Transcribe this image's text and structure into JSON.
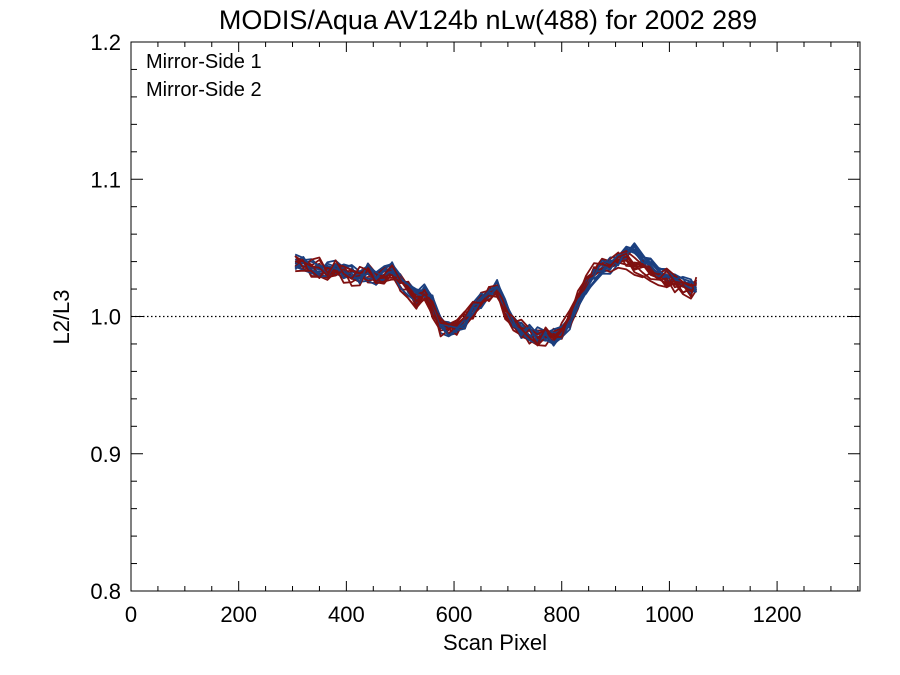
{
  "chart_data": {
    "type": "line",
    "title": "MODIS/Aqua AV124b nLw(488) for 2002 289",
    "xlabel": "Scan Pixel",
    "ylabel": "L2/L3",
    "xlim": [
      0,
      1354
    ],
    "ylim": [
      0.8,
      1.2
    ],
    "x_ticks": [
      0,
      200,
      400,
      600,
      800,
      1000,
      1200
    ],
    "x_tick_labels": [
      "0",
      "200",
      "400",
      "600",
      "800",
      "1000",
      "1200"
    ],
    "x_minor_step": 50,
    "y_ticks": [
      0.8,
      0.9,
      1.0,
      1.1,
      1.2
    ],
    "y_tick_labels": [
      "0.8",
      "0.9",
      "1.0",
      "1.1",
      "1.2"
    ],
    "y_minor_step": 0.02,
    "reference_line": {
      "y": 1.0,
      "style": "dotted"
    },
    "legend_position": "top-left",
    "colors": {
      "Mirror-Side 1": "#1b3f7f",
      "Mirror-Side 2": "#7f1010"
    },
    "series": [
      {
        "name": "Mirror-Side 1",
        "x": [
          305,
          320,
          335,
          350,
          365,
          380,
          395,
          410,
          425,
          440,
          455,
          470,
          485,
          500,
          515,
          530,
          545,
          560,
          575,
          590,
          605,
          620,
          635,
          650,
          665,
          680,
          695,
          710,
          725,
          740,
          755,
          770,
          785,
          800,
          815,
          830,
          845,
          860,
          875,
          890,
          905,
          920,
          935,
          950,
          965,
          980,
          995,
          1010,
          1025,
          1040,
          1050
        ],
        "values": [
          1.04,
          1.039,
          1.036,
          1.034,
          1.033,
          1.036,
          1.033,
          1.031,
          1.028,
          1.033,
          1.027,
          1.03,
          1.035,
          1.027,
          1.02,
          1.015,
          1.018,
          1.01,
          0.995,
          0.99,
          0.991,
          0.995,
          1.005,
          1.012,
          1.018,
          1.02,
          1.008,
          0.995,
          0.99,
          0.988,
          0.986,
          0.985,
          0.984,
          0.988,
          0.995,
          1.01,
          1.022,
          1.03,
          1.035,
          1.037,
          1.04,
          1.045,
          1.048,
          1.042,
          1.038,
          1.032,
          1.03,
          1.028,
          1.025,
          1.022,
          1.02
        ],
        "spread": 0.005
      },
      {
        "name": "Mirror-Side 2",
        "x": [
          305,
          320,
          335,
          350,
          365,
          380,
          395,
          410,
          425,
          440,
          455,
          470,
          485,
          500,
          515,
          530,
          545,
          560,
          575,
          590,
          605,
          620,
          635,
          650,
          665,
          680,
          695,
          710,
          725,
          740,
          755,
          770,
          785,
          800,
          815,
          830,
          845,
          860,
          875,
          890,
          905,
          920,
          935,
          950,
          965,
          980,
          995,
          1010,
          1025,
          1040,
          1050
        ],
        "values": [
          1.04,
          1.038,
          1.035,
          1.035,
          1.034,
          1.035,
          1.032,
          1.03,
          1.03,
          1.032,
          1.028,
          1.031,
          1.033,
          1.025,
          1.017,
          1.012,
          1.015,
          1.006,
          0.993,
          0.99,
          0.993,
          0.998,
          1.006,
          1.012,
          1.017,
          1.018,
          1.005,
          0.994,
          0.99,
          0.987,
          0.985,
          0.986,
          0.986,
          0.99,
          0.998,
          1.012,
          1.025,
          1.033,
          1.038,
          1.04,
          1.042,
          1.04,
          1.036,
          1.035,
          1.033,
          1.03,
          1.028,
          1.025,
          1.022,
          1.02,
          1.025
        ],
        "spread": 0.006
      }
    ],
    "replicates_per_series": 10
  }
}
